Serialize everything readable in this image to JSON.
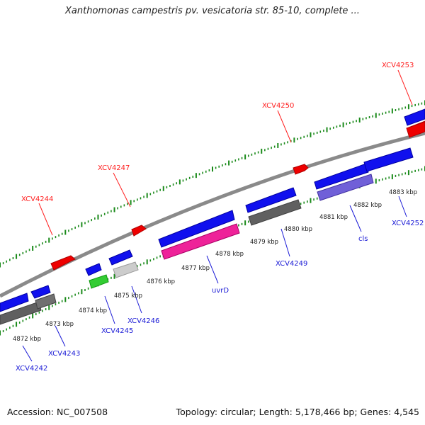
{
  "title": "Xanthomonas campestris pv. vesicatoria str. 85-10, complete ...",
  "footer": {
    "accession": "Accession: NC_007508",
    "summary": "Topology: circular; Length: 5,178,466 bp; Genes: 4,545"
  },
  "colors": {
    "forward_label": "#ff2020",
    "reverse_label": "#1a1ad6",
    "tick": "#1a8a1a",
    "backbone": "#8a8a8a"
  },
  "kbp_ticks": [
    "4872 kbp",
    "4873 kbp",
    "4874 kbp",
    "4875 kbp",
    "4876 kbp",
    "4877 kbp",
    "4878 kbp",
    "4879 kbp",
    "4880 kbp",
    "4881 kbp",
    "4882 kbp",
    "4883 kbp"
  ],
  "gene_labels": [
    {
      "name": "XCV4244",
      "strand": "forward"
    },
    {
      "name": "XCV4247",
      "strand": "forward"
    },
    {
      "name": "XCV4250",
      "strand": "forward"
    },
    {
      "name": "XCV4253",
      "strand": "forward"
    },
    {
      "name": "XCV4242",
      "strand": "reverse"
    },
    {
      "name": "XCV4243",
      "strand": "reverse"
    },
    {
      "name": "XCV4245",
      "strand": "reverse"
    },
    {
      "name": "XCV4246",
      "strand": "reverse"
    },
    {
      "name": "uvrD",
      "strand": "reverse"
    },
    {
      "name": "XCV4249",
      "strand": "reverse"
    },
    {
      "name": "cls",
      "strand": "reverse"
    },
    {
      "name": "XCV4252",
      "strand": "reverse"
    }
  ]
}
